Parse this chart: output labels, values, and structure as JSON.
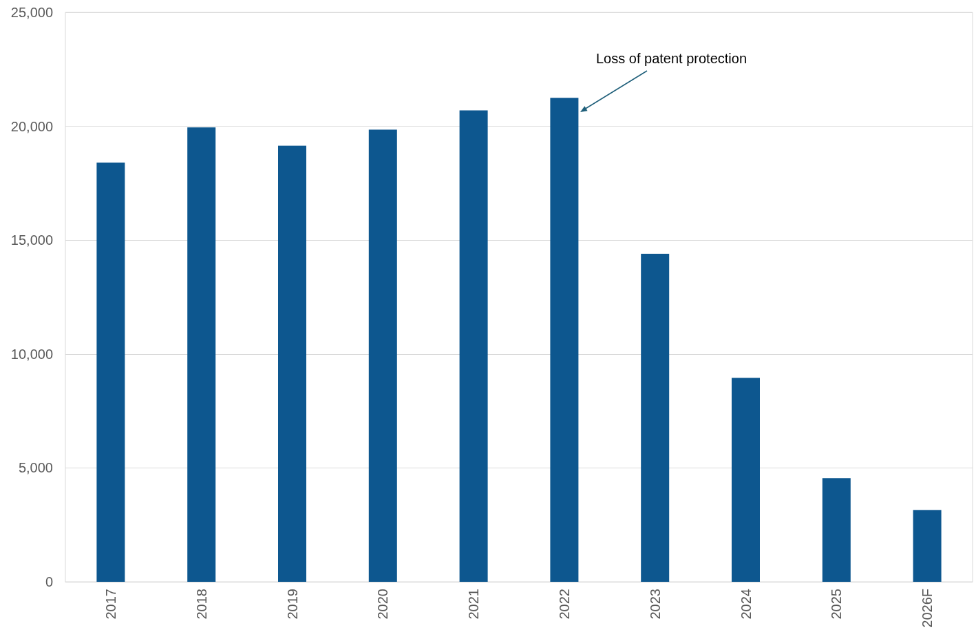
{
  "chart_data": {
    "type": "bar",
    "categories": [
      "2017",
      "2018",
      "2019",
      "2020",
      "2021",
      "2022",
      "2023",
      "2024",
      "2025",
      "2026F"
    ],
    "values": [
      18400,
      19950,
      19150,
      19850,
      20700,
      21250,
      14400,
      8950,
      4550,
      3150
    ],
    "color": "#0d578f",
    "ylim": [
      0,
      25000
    ],
    "yticks": [
      0,
      {
        "value": 5000,
        "label": "5,000"
      },
      {
        "value": 10000,
        "label": "10,000"
      },
      {
        "value": 15000,
        "label": "15,000"
      },
      {
        "value": 20000,
        "label": "20,000"
      },
      {
        "value": 25000,
        "label": "25,000"
      }
    ],
    "grid": "y",
    "annotations": [
      "Loss of patent protection"
    ]
  }
}
